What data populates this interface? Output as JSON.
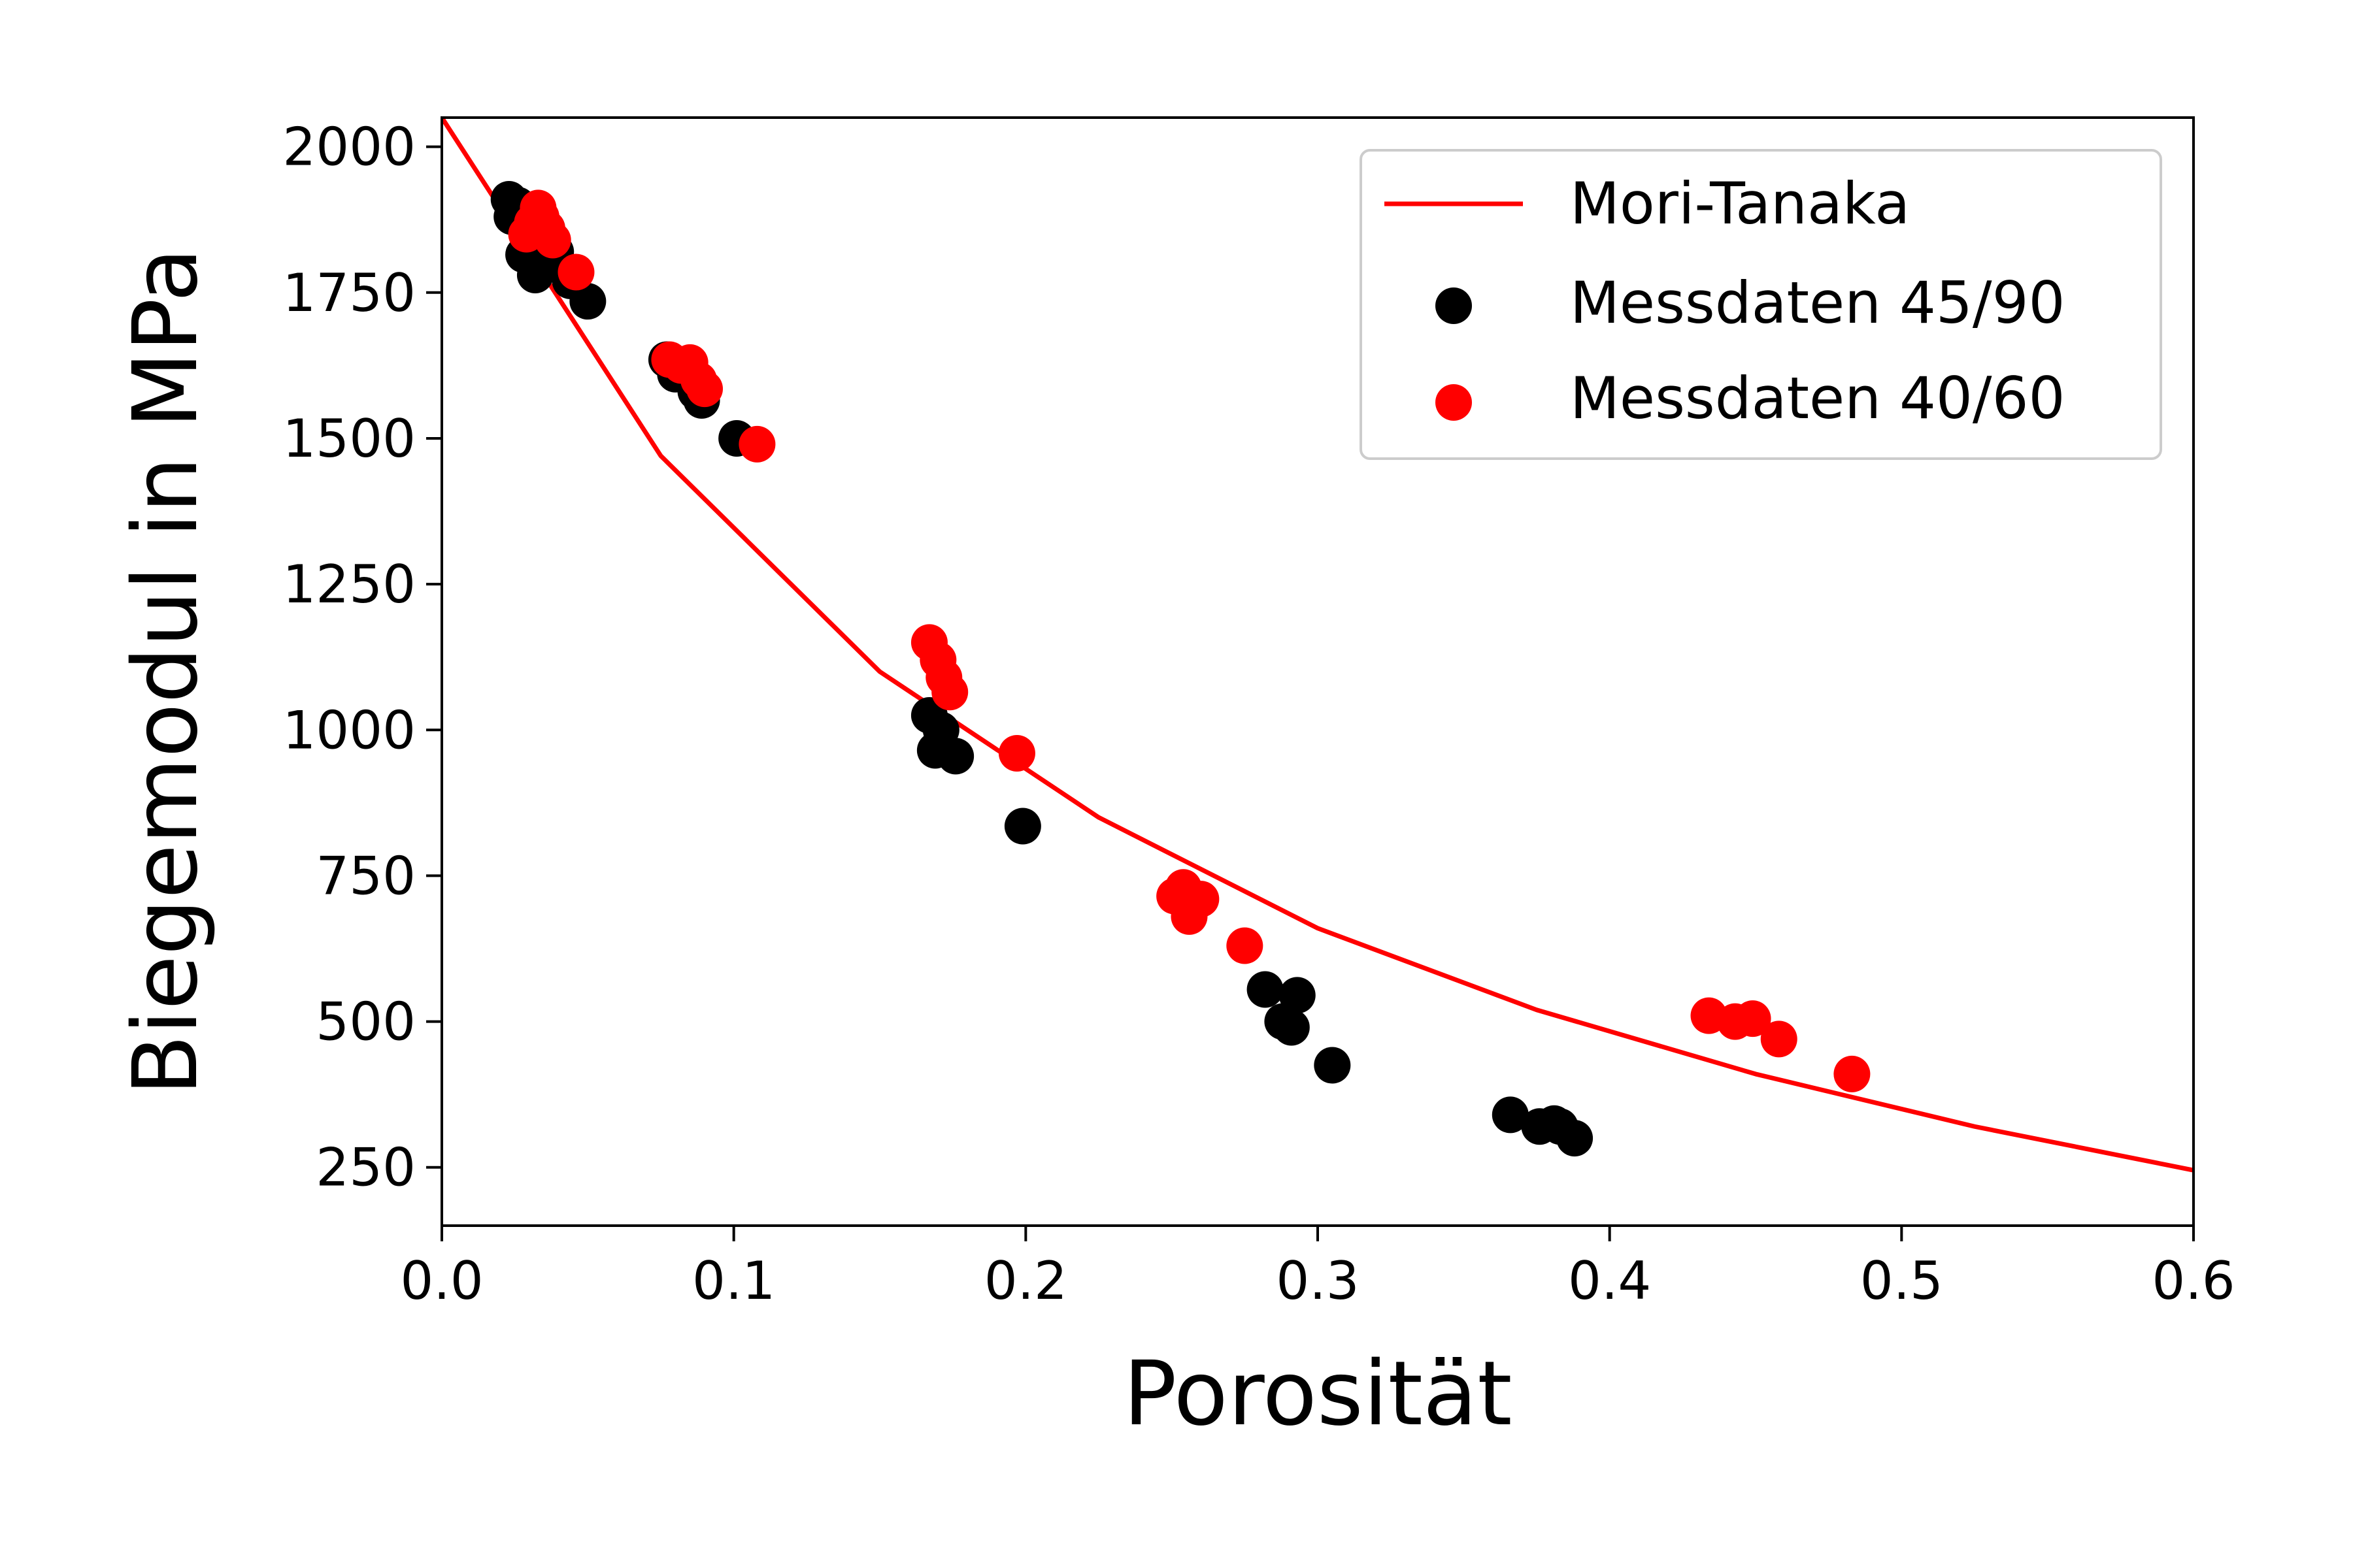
{
  "chart_data": {
    "type": "scatter",
    "title": "",
    "xlabel": "Porosität",
    "ylabel": "Biegemodul in MPa",
    "xlim": [
      0.0,
      0.6
    ],
    "ylim": [
      150,
      2050
    ],
    "xticks": [
      0.0,
      0.1,
      0.2,
      0.3,
      0.4,
      0.5,
      0.6
    ],
    "xtick_labels": [
      "0.0",
      "0.1",
      "0.2",
      "0.3",
      "0.4",
      "0.5",
      "0.6"
    ],
    "yticks": [
      250,
      500,
      750,
      1000,
      1250,
      1500,
      1750,
      2000
    ],
    "ytick_labels": [
      "250",
      "500",
      "750",
      "1000",
      "1250",
      "1500",
      "1750",
      "2000"
    ],
    "grid": false,
    "legend_position": "top-right",
    "series": [
      {
        "name": "Mori-Tanaka",
        "kind": "line",
        "color": "#ff0000",
        "x": [
          0.0,
          0.075,
          0.15,
          0.225,
          0.3,
          0.375,
          0.45,
          0.525,
          0.6
        ],
        "y": [
          2050,
          1470,
          1100,
          850,
          660,
          520,
          410,
          320,
          245
        ]
      },
      {
        "name": "Messdaten 45/90",
        "kind": "scatter",
        "color": "#000000",
        "x": [
          0.023,
          0.024,
          0.026,
          0.028,
          0.032,
          0.034,
          0.036,
          0.039,
          0.044,
          0.05,
          0.077,
          0.08,
          0.083,
          0.087,
          0.089,
          0.101,
          0.167,
          0.169,
          0.171,
          0.176,
          0.199,
          0.282,
          0.288,
          0.291,
          0.293,
          0.305,
          0.366,
          0.376,
          0.381,
          0.383,
          0.388
        ],
        "y": [
          1910,
          1880,
          1900,
          1815,
          1780,
          1800,
          1860,
          1820,
          1770,
          1735,
          1635,
          1610,
          1625,
          1580,
          1565,
          1500,
          1025,
          965,
          1000,
          955,
          835,
          555,
          500,
          490,
          545,
          425,
          340,
          320,
          325,
          320,
          300
        ]
      },
      {
        "name": "Messdaten 40/60",
        "kind": "scatter",
        "color": "#ff0000",
        "x": [
          0.029,
          0.031,
          0.033,
          0.034,
          0.036,
          0.038,
          0.046,
          0.078,
          0.082,
          0.085,
          0.088,
          0.09,
          0.108,
          0.167,
          0.17,
          0.172,
          0.174,
          0.197,
          0.251,
          0.254,
          0.256,
          0.26,
          0.275,
          0.434,
          0.443,
          0.449,
          0.458,
          0.483
        ],
        "y": [
          1850,
          1870,
          1895,
          1880,
          1860,
          1840,
          1785,
          1635,
          1625,
          1630,
          1600,
          1585,
          1490,
          1150,
          1120,
          1090,
          1065,
          960,
          715,
          730,
          680,
          710,
          630,
          510,
          500,
          505,
          470,
          410
        ]
      }
    ]
  }
}
